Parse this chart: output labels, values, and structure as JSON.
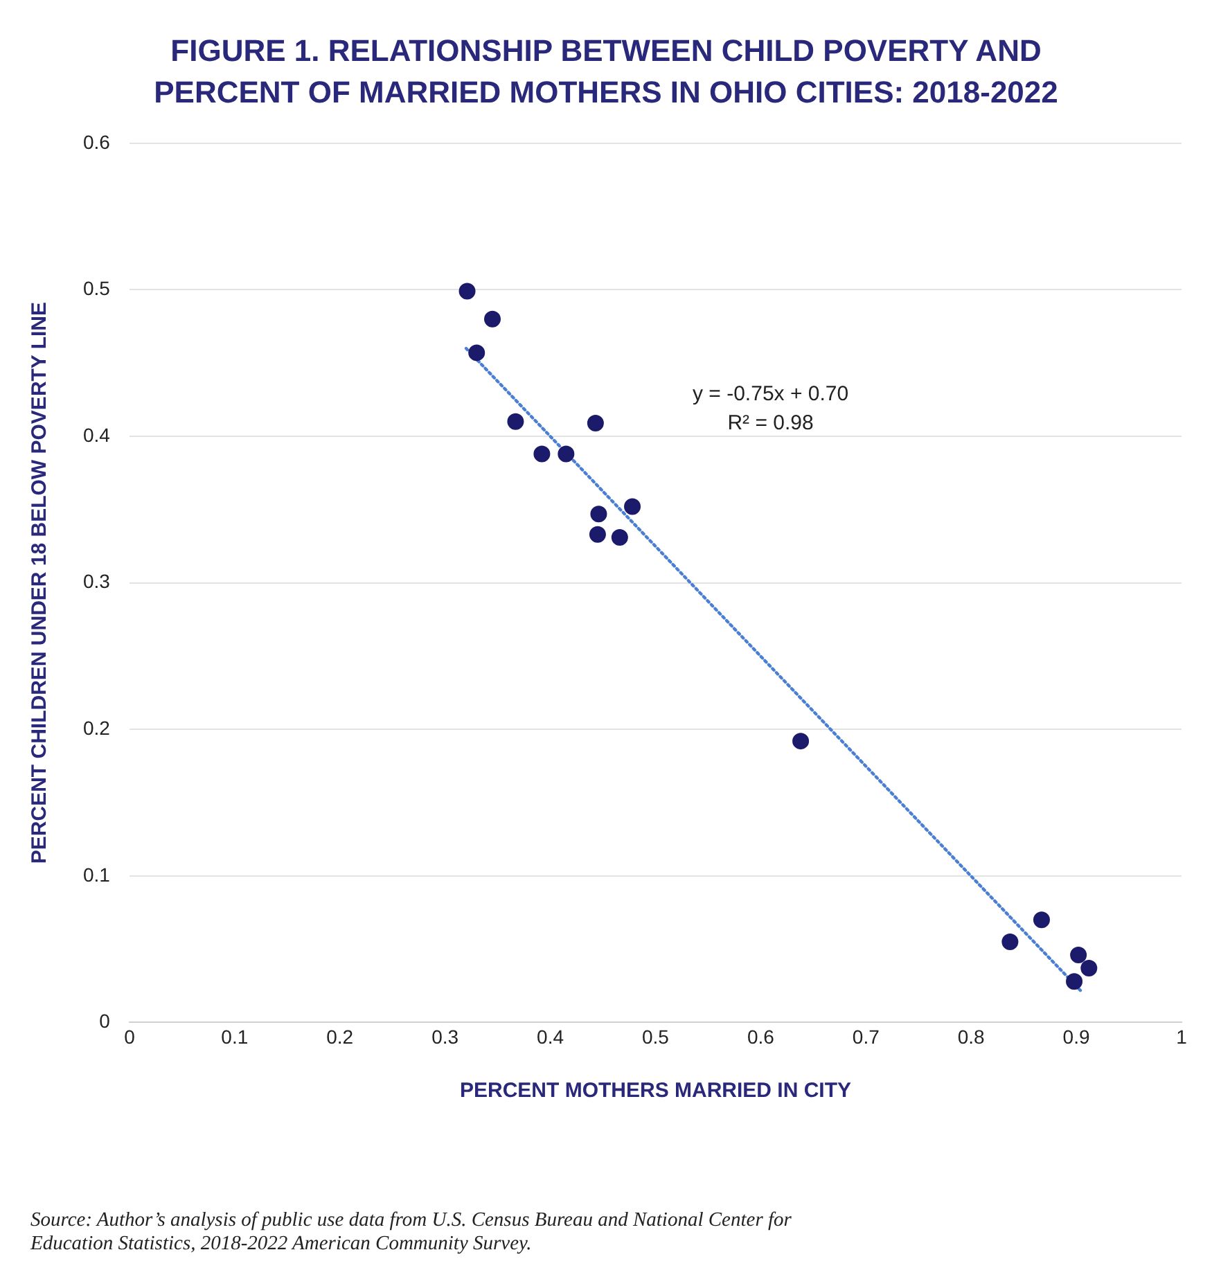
{
  "chart_data": {
    "type": "scatter",
    "title": "FIGURE 1. RELATIONSHIP BETWEEN CHILD POVERTY AND PERCENT OF MARRIED MOTHERS IN OHIO CITIES: 2018-2022",
    "xlabel": "PERCENT MOTHERS MARRIED IN CITY",
    "ylabel": "PERCENT CHILDREN UNDER 18 BELOW POVERTY LINE",
    "xlim": [
      0,
      1
    ],
    "xticks": [
      0,
      0.1,
      0.2,
      0.3,
      0.4,
      0.5,
      0.6,
      0.7,
      0.8,
      0.9,
      1
    ],
    "ylim": [
      0,
      0.6
    ],
    "yticks": [
      0,
      0.1,
      0.2,
      0.3,
      0.4,
      0.5,
      0.6
    ],
    "grid": "y",
    "legend": false,
    "marker": "circle",
    "series": [
      {
        "color": "#1b1a6b",
        "x": [
          0.321,
          0.345,
          0.33,
          0.367,
          0.443,
          0.392,
          0.415,
          0.478,
          0.446,
          0.445,
          0.466,
          0.638,
          0.867,
          0.837,
          0.902,
          0.912,
          0.898
        ],
        "values": [
          0.499,
          0.48,
          0.457,
          0.41,
          0.409,
          0.388,
          0.388,
          0.352,
          0.347,
          0.333,
          0.331,
          0.192,
          0.07,
          0.055,
          0.046,
          0.037,
          0.028
        ]
      },
      {
        "type": "line",
        "color": "#4a7fd4",
        "line_style": "dotted",
        "marker": "none",
        "x": [
          0.32,
          0.905
        ],
        "values": [
          0.46,
          0.021
        ]
      }
    ],
    "annotations": [
      "y = -0.75x + 0.70",
      "R² = 0.98",
      "Source: Author’s analysis of public use data from U.S. Census Bureau and National Center for Education Statistics, 2018-2022 American Community Survey."
    ]
  }
}
